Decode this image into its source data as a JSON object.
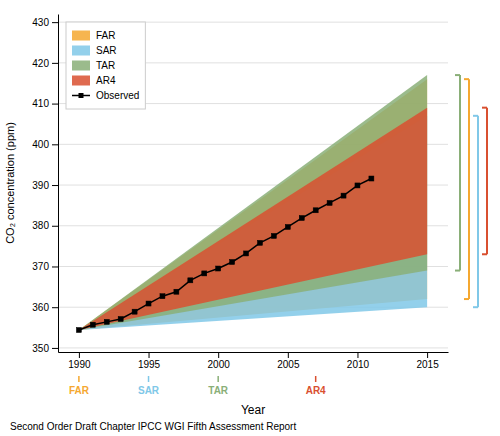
{
  "chart_data": {
    "type": "area",
    "subtitle": "Second Order Draft Chapter IPCC WGI Fifth Assessment Report",
    "xlabel": "Year",
    "ylabel": "CO₂ concentration (ppm)",
    "xlim": [
      1988.5,
      2016.5
    ],
    "ylim": [
      349,
      432
    ],
    "xticks": [
      1990,
      1995,
      2000,
      2005,
      2010,
      2015
    ],
    "yticks": [
      350,
      360,
      370,
      380,
      390,
      400,
      410,
      420,
      430
    ],
    "grid": "y",
    "legend": "upper left",
    "series": [
      {
        "name": "FAR",
        "type": "band",
        "color": "#F5A830",
        "x": [
          1990,
          2015
        ],
        "low": [
          354.4,
          362
        ],
        "high": [
          354.4,
          416
        ]
      },
      {
        "name": "SAR",
        "type": "band",
        "color": "#80C8E8",
        "x": [
          1990,
          2015
        ],
        "low": [
          354.4,
          360
        ],
        "high": [
          354.4,
          407
        ]
      },
      {
        "name": "TAR",
        "type": "band",
        "color": "#8AAF78",
        "x": [
          1990,
          2015
        ],
        "low": [
          354.4,
          369
        ],
        "high": [
          354.4,
          417
        ]
      },
      {
        "name": "AR4",
        "type": "band",
        "color": "#D95030",
        "x": [
          1990,
          2015
        ],
        "low": [
          354.4,
          373
        ],
        "high": [
          354.4,
          409
        ]
      },
      {
        "name": "Observed",
        "type": "line",
        "color": "#000000",
        "marker": "square",
        "x": [
          1990,
          1991,
          1992,
          1993,
          1994,
          1995,
          1996,
          1997,
          1998,
          1999,
          2000,
          2001,
          2002,
          2003,
          2004,
          2005,
          2006,
          2007,
          2008,
          2009,
          2010,
          2011
        ],
        "values": [
          354.4,
          355.7,
          356.4,
          357.1,
          358.9,
          360.9,
          362.7,
          363.8,
          366.6,
          368.3,
          369.5,
          371.1,
          373.2,
          375.8,
          377.5,
          379.7,
          381.9,
          383.8,
          385.6,
          387.4,
          389.9,
          391.6
        ]
      }
    ],
    "annotations": [
      {
        "text": "FAR",
        "x": 1990,
        "color": "#F5A830"
      },
      {
        "text": "SAR",
        "x": 1995,
        "color": "#80C8E8"
      },
      {
        "text": "TAR",
        "x": 2000,
        "color": "#8AAF78"
      },
      {
        "text": "AR4",
        "x": 2007,
        "color": "#D95030"
      }
    ],
    "brackets": [
      {
        "color": "#8AAF78",
        "low": 369,
        "high": 417
      },
      {
        "color": "#F5A830",
        "low": 362,
        "high": 416
      },
      {
        "color": "#80C8E8",
        "low": 360,
        "high": 407
      },
      {
        "color": "#D95030",
        "low": 373,
        "high": 409
      }
    ]
  }
}
